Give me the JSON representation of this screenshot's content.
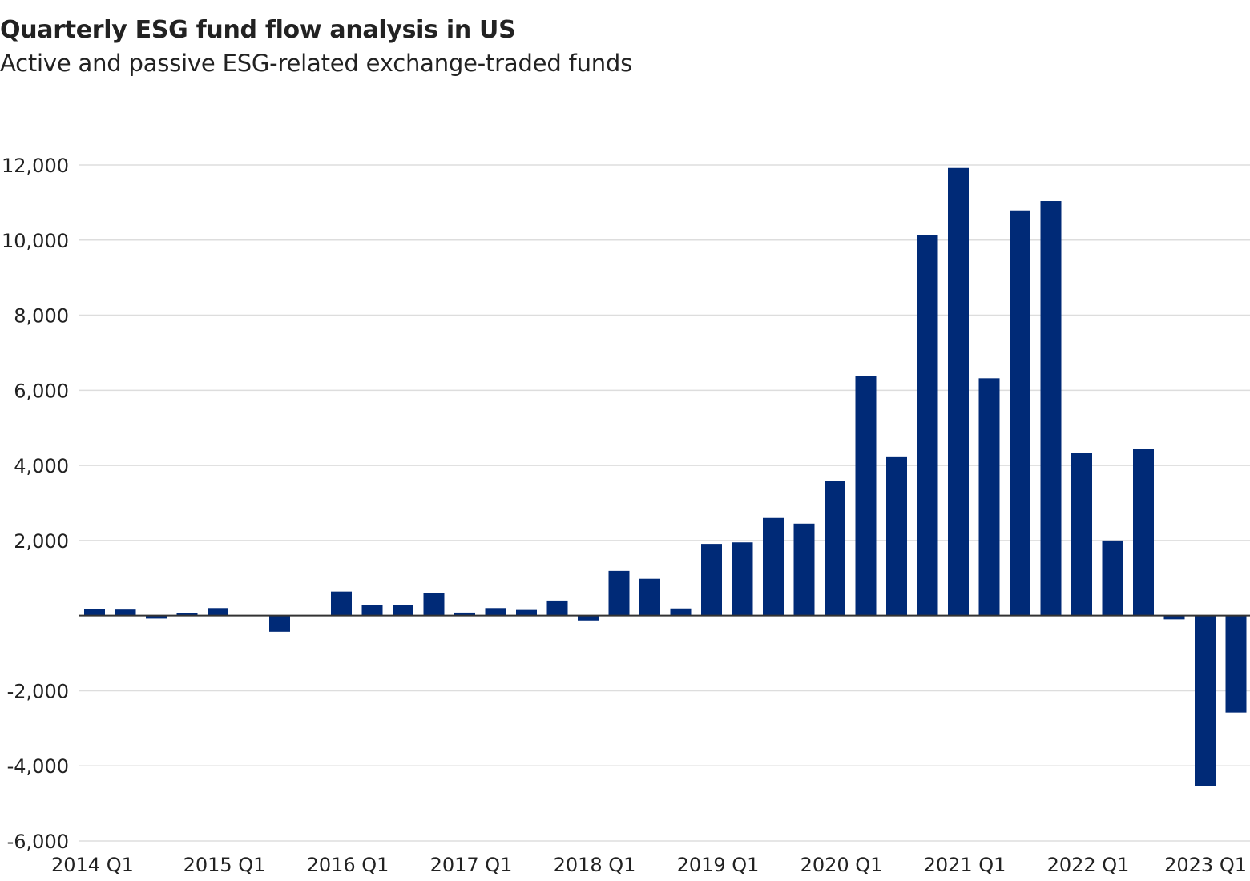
{
  "chart_data": {
    "type": "bar",
    "title": "Quarterly ESG fund flow analysis in US",
    "subtitle": "Active and passive ESG-related exchange-traded funds",
    "xlabel": "",
    "ylabel": "",
    "ylim": [
      -6000,
      12000
    ],
    "yticks": [
      -6000,
      -4000,
      -2000,
      0,
      2000,
      4000,
      6000,
      8000,
      10000,
      12000
    ],
    "ytick_labels": [
      "-6,000",
      "-4,000",
      "-2,000",
      "",
      "2,000",
      "4,000",
      "6,000",
      "8,000",
      "10,000",
      "12,000"
    ],
    "xtick_labels": [
      "2014 Q1",
      "2015 Q1",
      "2016 Q1",
      "2017 Q1",
      "2018 Q1",
      "2019 Q1",
      "2020 Q1",
      "2021 Q1",
      "2022 Q1",
      "2023 Q1"
    ],
    "xtick_indices": [
      0,
      4,
      8,
      12,
      16,
      20,
      24,
      28,
      32,
      36
    ],
    "grid": true,
    "bar_color": "#002a77",
    "categories": [
      "2014 Q1",
      "2014 Q2",
      "2014 Q3",
      "2014 Q4",
      "2015 Q1",
      "2015 Q2",
      "2015 Q3",
      "2015 Q4",
      "2016 Q1",
      "2016 Q2",
      "2016 Q3",
      "2016 Q4",
      "2017 Q1",
      "2017 Q2",
      "2017 Q3",
      "2017 Q4",
      "2018 Q1",
      "2018 Q2",
      "2018 Q3",
      "2018 Q4",
      "2019 Q1",
      "2019 Q2",
      "2019 Q3",
      "2019 Q4",
      "2020 Q1",
      "2020 Q2",
      "2020 Q3",
      "2020 Q4",
      "2021 Q1",
      "2021 Q2",
      "2021 Q3",
      "2021 Q4",
      "2022 Q1",
      "2022 Q2",
      "2022 Q3",
      "2022 Q4",
      "2023 Q1",
      "2023 Q2"
    ],
    "values": [
      170,
      160,
      -80,
      70,
      200,
      0,
      -430,
      0,
      640,
      270,
      270,
      610,
      80,
      200,
      150,
      400,
      -130,
      1190,
      980,
      190,
      1910,
      1950,
      2600,
      2450,
      3580,
      6390,
      4240,
      10130,
      11920,
      6320,
      10790,
      11040,
      4340,
      2000,
      4450,
      -100,
      -4530,
      -2580
    ]
  }
}
